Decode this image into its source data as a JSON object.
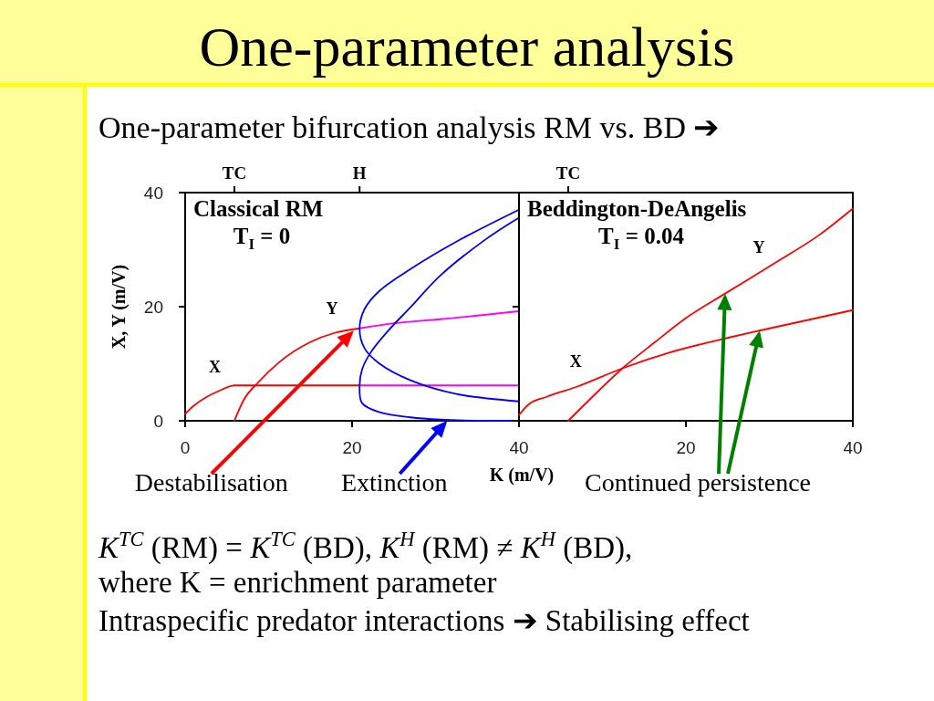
{
  "chart_data": [
    {
      "type": "line",
      "title": "Classical RM",
      "subtitle": "T$_{I}$ = 0",
      "xlabel": "K (m/V)",
      "ylabel": "X, Y (m/V)",
      "xlim": [
        0,
        40
      ],
      "xticks": [
        0,
        20,
        40
      ],
      "ylim": [
        0,
        40
      ],
      "yticks": [
        0,
        20,
        40
      ],
      "ref_lines": [
        {
          "axis": "x",
          "value": 5.9,
          "label": "TC"
        },
        {
          "axis": "x",
          "value": 20.9,
          "label": "H"
        }
      ],
      "series": [
        {
          "name": "X",
          "color": "#ff0000",
          "x": [
            0,
            1,
            2.6,
            4,
            5.9,
            20.9
          ],
          "values": [
            1.2,
            2.6,
            4.2,
            5.2,
            6.2,
            6.2
          ]
        },
        {
          "color": "#ff00ff",
          "x": [
            20.9,
            40
          ],
          "values": [
            6.2,
            6.2
          ]
        },
        {
          "name": "Y",
          "color": "#ff0000",
          "x": [
            5.9,
            7,
            8.8,
            11.3,
            15,
            17.9,
            20.9
          ],
          "values": [
            0,
            3.6,
            6.8,
            10.3,
            13.8,
            15.4,
            16.2
          ]
        },
        {
          "color": "#ff00ff",
          "x": [
            20.9,
            25,
            30.6,
            40
          ],
          "values": [
            16.2,
            17.1,
            17.8,
            19.2
          ]
        },
        {
          "color": "#0000ff",
          "x": [
            40,
            32.5,
            27,
            23.3,
            21.5,
            20.9,
            21.5,
            23.3,
            27,
            32.5,
            40
          ],
          "values": [
            37,
            31.4,
            26.6,
            22.8,
            19.6,
            16.2,
            12.7,
            10,
            7.1,
            4.7,
            3.4
          ]
        },
        {
          "color": "#0000ff",
          "x": [
            40,
            36.1,
            30.6,
            27,
            24.4,
            22.2,
            21.2,
            20.9,
            21.2,
            23.3,
            27,
            30.6,
            36.1,
            40
          ],
          "values": [
            35.6,
            31.9,
            25.5,
            19.9,
            15.9,
            11.9,
            9,
            6.2,
            3.1,
            1.5,
            0.6,
            0.2,
            0,
            0
          ]
        }
      ],
      "annotations": [
        "One-parameter analysis",
        "One-parameter bifurcation analysis RM vs. BD ➔",
        "K$^{TC}$ (RM) = K$^{TC}$ (BD), K$^{H}$ (RM) ≠ K$^{H}$ (BD),",
        "where K = enrichment parameter",
        "Intraspecific predator interactions ➔ Stabilising effect",
        {
          "text": "Destabilisation",
          "x": 20.2,
          "y": 15.8
        },
        {
          "text": "Extinction",
          "x": 31.4,
          "y": 0
        }
      ]
    },
    {
      "type": "line",
      "title": "Beddington-DeAngelis",
      "subtitle": "T$_{I}$ = 0.04",
      "xlim": [
        0,
        40
      ],
      "xticks": [
        {
          "value": 0,
          "label": null
        },
        20,
        40
      ],
      "ylim": [
        0,
        40
      ],
      "yticks": [
        0,
        20,
        40
      ],
      "tick_labels": "x",
      "ref_lines": [
        {
          "axis": "x",
          "value": 5.9,
          "label": "TC"
        }
      ],
      "series": [
        {
          "name": "X",
          "color": "#ff0000",
          "x": [
            0,
            1.1,
            3.3,
            7,
            12.4,
            17.9,
            25.2,
            28.8,
            40
          ],
          "values": [
            1,
            2.8,
            4.2,
            6,
            9.2,
            11.9,
            14.6,
            15.8,
            19.4
          ]
        },
        {
          "name": "Y",
          "color": "#ff0000",
          "x": [
            5.9,
            8.8,
            12.4,
            16.3,
            20,
            24.7,
            30.6,
            36.1,
            40
          ],
          "values": [
            0,
            4.2,
            9.2,
            13.8,
            18,
            22.3,
            27.6,
            32.7,
            37.2
          ]
        }
      ],
      "annotations": [
        {
          "text": "Continued persistence",
          "x": 24.7,
          "y": 22.3
        }
      ]
    }
  ]
}
